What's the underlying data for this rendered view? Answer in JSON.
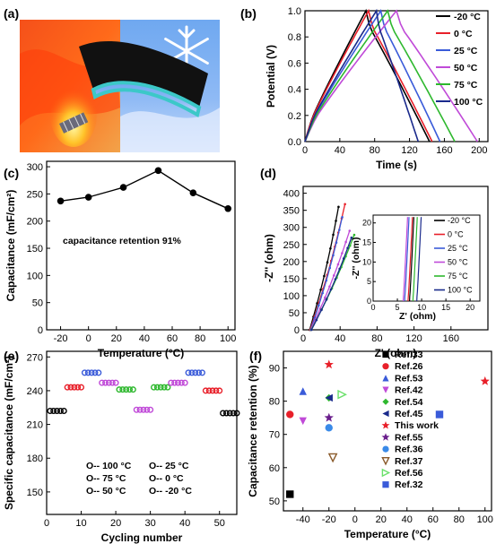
{
  "colors": {
    "m20": "#000000",
    "c0": "#e8202a",
    "c25": "#3a5bd9",
    "c50": "#c04ad8",
    "c75": "#2eb82e",
    "c100": "#1a2a8c",
    "flameRed": "#e8380f",
    "iceBlue": "#5a9ee8",
    "filmTeal": "#3cc8c8"
  },
  "chart_data": [
    {
      "panel": "a",
      "type": "other",
      "panel_label": "(a)",
      "content": "photo-illustration"
    },
    {
      "panel": "b",
      "type": "line",
      "panel_label": "(b)",
      "xlabel": "Time (s)",
      "ylabel": "Potential (V)",
      "xlim": [
        0,
        210
      ],
      "ylim": [
        0,
        1.0
      ],
      "xticks": [
        "0",
        "40",
        "80",
        "120",
        "160",
        "200"
      ],
      "yticks": [
        "0.0",
        "0.2",
        "0.4",
        "0.6",
        "0.8",
        "1.0"
      ],
      "legend_position": "right",
      "series": [
        {
          "name": "-20 °C",
          "color": "#000000",
          "peak": 70,
          "end": 143
        },
        {
          "name": "0 °C",
          "color": "#e8202a",
          "peak": 73,
          "end": 146
        },
        {
          "name": "25 °C",
          "color": "#3a5bd9",
          "peak": 87,
          "end": 155
        },
        {
          "name": "50 °C",
          "color": "#c04ad8",
          "peak": 105,
          "end": 198
        },
        {
          "name": "75 °C",
          "color": "#2eb82e",
          "peak": 95,
          "end": 172
        },
        {
          "name": "100 °C",
          "color": "#1a2a8c",
          "peak": 82,
          "end": 130
        }
      ]
    },
    {
      "panel": "c",
      "type": "line",
      "panel_label": "(c)",
      "xlabel": "Temperature (°C)",
      "ylabel": "Capacitance (mF/cm²)",
      "xlim": [
        -30,
        105
      ],
      "ylim": [
        0,
        310
      ],
      "xticks": [
        "-20",
        "0",
        "20",
        "40",
        "60",
        "80",
        "100"
      ],
      "yticks": [
        "0",
        "50",
        "100",
        "150",
        "200",
        "250",
        "300"
      ],
      "annotation": "capacitance retention 91%",
      "x": [
        -20,
        0,
        25,
        50,
        75,
        100
      ],
      "y": [
        237,
        244,
        262,
        293,
        252,
        223
      ]
    },
    {
      "panel": "d",
      "type": "line",
      "panel_label": "(d)",
      "xlabel": "Z' (ohm)",
      "ylabel": "-Z'' (ohm)",
      "xlim": [
        0,
        200
      ],
      "ylim": [
        0,
        420
      ],
      "xticks": [
        "0",
        "40",
        "80",
        "120",
        "160"
      ],
      "yticks": [
        "0",
        "50",
        "100",
        "150",
        "200",
        "250",
        "300",
        "350",
        "400"
      ],
      "legend_position": "inset-right",
      "series": [
        {
          "name": "-20 °C",
          "color": "#000000",
          "start": 7,
          "end": [
            38,
            360
          ]
        },
        {
          "name": "0 °C",
          "color": "#e8202a",
          "start": 7.5,
          "end": [
            45,
            368
          ]
        },
        {
          "name": "25 °C",
          "color": "#3a5bd9",
          "start": 8,
          "end": [
            42,
            330
          ]
        },
        {
          "name": "50 °C",
          "color": "#c04ad8",
          "start": 8,
          "end": [
            50,
            290
          ]
        },
        {
          "name": "75 °C",
          "color": "#2eb82e",
          "start": 8.5,
          "end": [
            55,
            278
          ]
        },
        {
          "name": "100 °C",
          "color": "#1a2a8c",
          "start": 9,
          "end": [
            52,
            270
          ]
        }
      ],
      "inset": {
        "xlabel": "Z' (ohm)",
        "ylabel": "-Z'' (ohm)",
        "xlim": [
          0,
          22
        ],
        "ylim": [
          0,
          22
        ],
        "xticks": [
          "0",
          "5",
          "10",
          "15",
          "20"
        ],
        "yticks": [
          "0",
          "5",
          "10",
          "15",
          "20"
        ],
        "start": [
          7.5,
          7.2,
          6.5,
          6.2,
          8.2,
          9.0
        ]
      }
    },
    {
      "panel": "e",
      "type": "scatter",
      "panel_label": "(e)",
      "xlabel": "Cycling number",
      "ylabel": "Specific capacitance (mF/cm²)",
      "xlim": [
        0,
        55
      ],
      "ylim": [
        130,
        275
      ],
      "xticks": [
        "0",
        "10",
        "20",
        "30",
        "40",
        "50"
      ],
      "yticks": [
        "150",
        "180",
        "210",
        "240",
        "270"
      ],
      "legend_position": "bottom",
      "segments": [
        {
          "label": "O-- 100 °C",
          "color": "#000000",
          "x": [
            1,
            2,
            3,
            4,
            5
          ],
          "y": 222
        },
        {
          "label": "O-- 75 °C",
          "color": "#e8202a",
          "x": [
            6,
            7,
            8,
            9,
            10
          ],
          "y": 243
        },
        {
          "label": "O-- 50 °C",
          "color": "#3a5bd9",
          "x": [
            11,
            12,
            13,
            14,
            15
          ],
          "y": 256
        },
        {
          "label": "O-- 25 °C",
          "color": "#c04ad8",
          "x": [
            16,
            17,
            18,
            19,
            20
          ],
          "y": 247
        },
        {
          "label": "O-- 0 °C",
          "color": "#2eb82e",
          "x": [
            21,
            22,
            23,
            24,
            25
          ],
          "y": 241
        },
        {
          "label": "O-- -20 °C",
          "color": "#c04ad8",
          "x": [
            26,
            27,
            28,
            29,
            30
          ],
          "y": 223
        },
        {
          "label": "",
          "color": "#2eb82e",
          "x": [
            31,
            32,
            33,
            34,
            35
          ],
          "y": 243
        },
        {
          "label": "",
          "color": "#c04ad8",
          "x": [
            36,
            37,
            38,
            39,
            40
          ],
          "y": 247
        },
        {
          "label": "",
          "color": "#3a5bd9",
          "x": [
            41,
            42,
            43,
            44,
            45
          ],
          "y": 256
        },
        {
          "label": "",
          "color": "#e8202a",
          "x": [
            46,
            47,
            48,
            49,
            50
          ],
          "y": 240
        },
        {
          "label": "",
          "color": "#000000",
          "x": [
            51,
            52,
            53,
            54,
            55
          ],
          "y": 220
        }
      ],
      "legend_entries": [
        "O-- 100 °C",
        "O-- 25 °C",
        "O-- 75 °C",
        "O-- 0 °C",
        "O-- 50 °C",
        "O-- -20 °C"
      ]
    },
    {
      "panel": "f",
      "type": "scatter",
      "panel_label": "(f)",
      "xlabel": "Temperature (°C)",
      "ylabel": "Capacitance retention (%)",
      "xlim": [
        -55,
        105
      ],
      "ylim": [
        47,
        95
      ],
      "xticks": [
        "-40",
        "-20",
        "0",
        "20",
        "40",
        "60",
        "80",
        "100"
      ],
      "yticks": [
        "50",
        "60",
        "70",
        "80",
        "90"
      ],
      "legend_position": "center",
      "points": [
        {
          "name": "Ref.33",
          "color": "#000000",
          "marker": "square",
          "x": -50,
          "y": 52
        },
        {
          "name": "Ref.26",
          "color": "#e8202a",
          "marker": "circle",
          "x": -50,
          "y": 76
        },
        {
          "name": "Ref.53",
          "color": "#3a5bd9",
          "marker": "triangle-up",
          "x": -40,
          "y": 83
        },
        {
          "name": "Ref.42",
          "color": "#c04ad8",
          "marker": "triangle-down",
          "x": -40,
          "y": 74
        },
        {
          "name": "Ref.54",
          "color": "#2eb82e",
          "marker": "diamond",
          "x": -20,
          "y": 81
        },
        {
          "name": "Ref.45",
          "color": "#1a2a8c",
          "marker": "triangle-left",
          "x": -20,
          "y": 81
        },
        {
          "name": "This work",
          "color": "#e8202a",
          "marker": "star",
          "x": -20,
          "y": 91
        },
        {
          "name": "This work",
          "color": "#e8202a",
          "marker": "star",
          "x": 100,
          "y": 86
        },
        {
          "name": "Ref.55",
          "color": "#6a1e8c",
          "marker": "star",
          "x": -20,
          "y": 75
        },
        {
          "name": "Ref.36",
          "color": "#3a8ae8",
          "marker": "circle",
          "x": -20,
          "y": 72
        },
        {
          "name": "Ref.37",
          "color": "#8a5a2a",
          "marker": "triangle-down-open",
          "x": -17,
          "y": 63
        },
        {
          "name": "Ref.56",
          "color": "#6ae06a",
          "marker": "triangle-right-open",
          "x": -10,
          "y": 82
        },
        {
          "name": "Ref.32",
          "color": "#3a5bd9",
          "marker": "square",
          "x": 65,
          "y": 76
        }
      ],
      "legend_entries": [
        "Ref.33",
        "Ref.26",
        "Ref.53",
        "Ref.42",
        "Ref.54",
        "Ref.45",
        "This work",
        "Ref.55",
        "Ref.36",
        "Ref.37",
        "Ref.56",
        "Ref.32"
      ]
    }
  ]
}
